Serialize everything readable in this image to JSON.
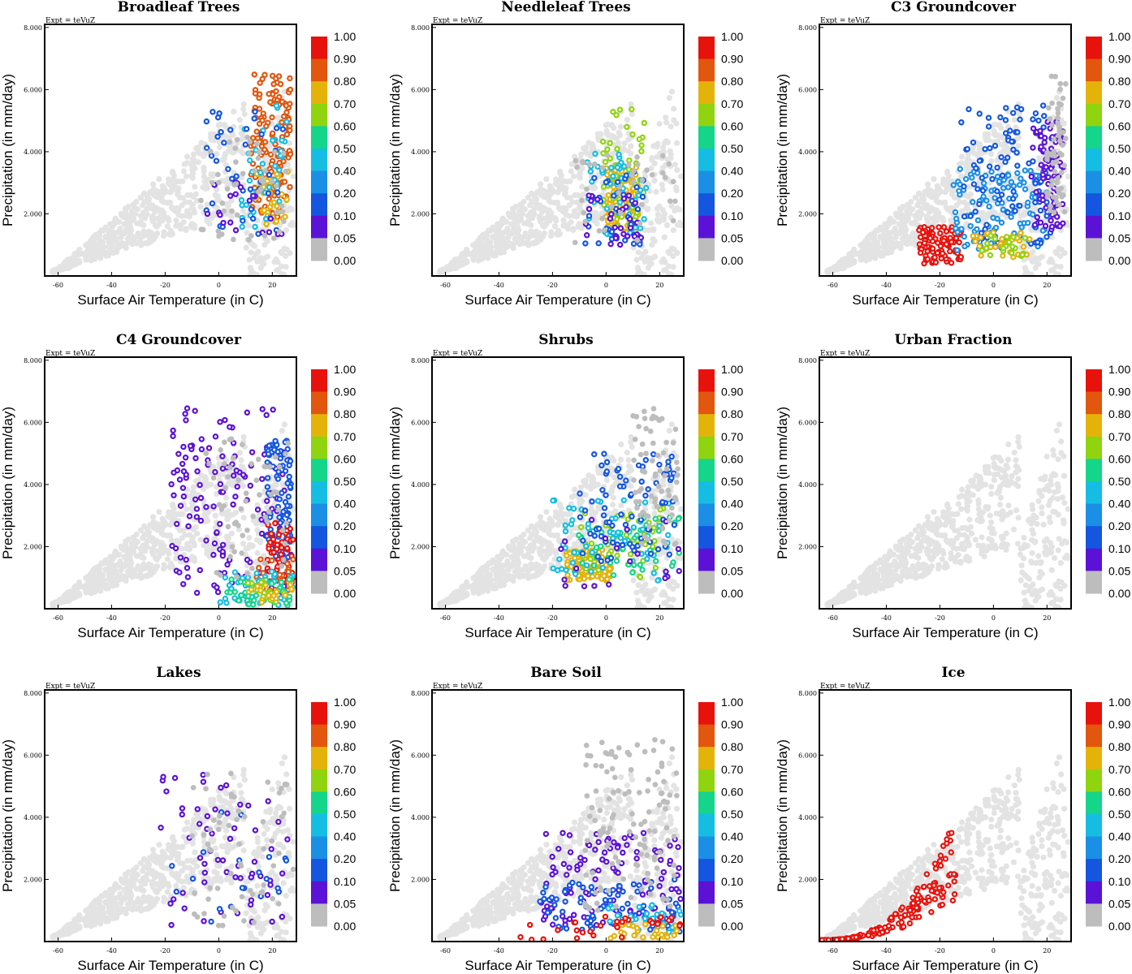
{
  "chart_data": [
    {
      "type": "scatter",
      "title": "Broadleaf Trees",
      "xlabel": "Surface Air Temperature (in C)",
      "ylabel": "Precipitation (in mm/day)",
      "xlim": [
        -65,
        29
      ],
      "ylim": [
        0,
        8.1
      ],
      "xticks": [
        "-60",
        "-40",
        "-20",
        "0",
        "20"
      ],
      "yticks": [
        "2.000",
        "4.000",
        "6.000",
        "8.000"
      ],
      "annotation": "Expt = teVuZ",
      "colorbar": {
        "levels": [
          "1.00",
          "0.90",
          "0.80",
          "0.70",
          "0.60",
          "0.50",
          "0.40",
          "0.20",
          "0.10",
          "0.05",
          "0.00"
        ],
        "colors": [
          "#e8120c",
          "#e2560e",
          "#e4b30a",
          "#8fd40f",
          "#15d58a",
          "#16bde3",
          "#1b8fe6",
          "#1456e0",
          "#5b12d6",
          "#bdbdbd"
        ]
      },
      "series": [
        {
          "cluster": true,
          "color": "#e2560e",
          "x": [
            12,
            27
          ],
          "y": [
            1.8,
            6.5
          ],
          "n": 150
        },
        {
          "cluster": true,
          "color": "#e4b30a",
          "x": [
            14,
            26
          ],
          "y": [
            1.6,
            3.4
          ],
          "n": 40
        },
        {
          "cluster": true,
          "color": "#16bde3",
          "x": [
            8,
            26
          ],
          "y": [
            1.5,
            5.5
          ],
          "n": 40
        },
        {
          "cluster": true,
          "color": "#1456e0",
          "x": [
            -5,
            26
          ],
          "y": [
            1.2,
            5.3
          ],
          "n": 40
        },
        {
          "cluster": true,
          "color": "#5b12d6",
          "x": [
            -5,
            26
          ],
          "y": [
            1.2,
            3.2
          ],
          "n": 20
        },
        {
          "cluster": true,
          "color": "#bdbdbd",
          "x": [
            -8,
            26
          ],
          "y": [
            1,
            4.5
          ],
          "n": 50
        }
      ]
    },
    {
      "type": "scatter",
      "title": "Needleleaf Trees",
      "xlabel": "Surface Air Temperature (in C)",
      "ylabel": "Precipitation (in mm/day)",
      "xlim": [
        -65,
        29
      ],
      "ylim": [
        0,
        8.1
      ],
      "xticks": [
        "-60",
        "-40",
        "-20",
        "0",
        "20"
      ],
      "yticks": [
        "2.000",
        "4.000",
        "6.000",
        "8.000"
      ],
      "annotation": "Expt = teVuZ",
      "colorbar": {
        "levels": [
          "1.00",
          "0.90",
          "0.80",
          "0.70",
          "0.60",
          "0.50",
          "0.40",
          "0.20",
          "0.10",
          "0.05",
          "0.00"
        ],
        "colors": [
          "#e8120c",
          "#e2560e",
          "#e4b30a",
          "#8fd40f",
          "#15d58a",
          "#16bde3",
          "#1b8fe6",
          "#1456e0",
          "#5b12d6",
          "#bdbdbd"
        ]
      },
      "series": [
        {
          "cluster": true,
          "color": "#e4b30a",
          "x": [
            0,
            12
          ],
          "y": [
            1.4,
            3.5
          ],
          "n": 120
        },
        {
          "cluster": true,
          "color": "#8fd40f",
          "x": [
            -2,
            15
          ],
          "y": [
            1.5,
            5.4
          ],
          "n": 50
        },
        {
          "cluster": true,
          "color": "#16bde3",
          "x": [
            -8,
            15
          ],
          "y": [
            1.2,
            4
          ],
          "n": 50
        },
        {
          "cluster": true,
          "color": "#1456e0",
          "x": [
            -8,
            14
          ],
          "y": [
            1,
            3.4
          ],
          "n": 40
        },
        {
          "cluster": true,
          "color": "#5b12d6",
          "x": [
            -10,
            14
          ],
          "y": [
            1,
            2.6
          ],
          "n": 30
        },
        {
          "cluster": true,
          "color": "#bdbdbd",
          "x": [
            -12,
            26
          ],
          "y": [
            1,
            4
          ],
          "n": 40
        }
      ]
    },
    {
      "type": "scatter",
      "title": "C3 Groundcover",
      "xlabel": "Surface Air Temperature (in C)",
      "ylabel": "Precipitation (in mm/day)",
      "xlim": [
        -65,
        29
      ],
      "ylim": [
        0,
        8.1
      ],
      "xticks": [
        "-60",
        "-40",
        "-20",
        "0",
        "20"
      ],
      "yticks": [
        "2.000",
        "4.000",
        "6.000",
        "8.000"
      ],
      "annotation": "Expt = teVuZ",
      "colorbar": {
        "levels": [
          "1.00",
          "0.90",
          "0.80",
          "0.70",
          "0.60",
          "0.50",
          "0.40",
          "0.20",
          "0.10",
          "0.05",
          "0.00"
        ],
        "colors": [
          "#e8120c",
          "#e2560e",
          "#e4b30a",
          "#8fd40f",
          "#15d58a",
          "#16bde3",
          "#1b8fe6",
          "#1456e0",
          "#5b12d6",
          "#bdbdbd"
        ]
      },
      "series": [
        {
          "cluster": true,
          "color": "#e8120c",
          "x": [
            -28,
            -12
          ],
          "y": [
            0.4,
            1.6
          ],
          "n": 100
        },
        {
          "cluster": true,
          "color": "#1b8fe6",
          "x": [
            -15,
            20
          ],
          "y": [
            0.8,
            3.5
          ],
          "n": 120
        },
        {
          "cluster": true,
          "color": "#1456e0",
          "x": [
            -12,
            22
          ],
          "y": [
            1,
            5.5
          ],
          "n": 100
        },
        {
          "cluster": true,
          "color": "#5b12d6",
          "x": [
            14,
            26
          ],
          "y": [
            1.5,
            5
          ],
          "n": 80
        },
        {
          "cluster": true,
          "color": "#e4b30a",
          "x": [
            -8,
            14
          ],
          "y": [
            0.6,
            1.4
          ],
          "n": 35
        },
        {
          "cluster": true,
          "color": "#8fd40f",
          "x": [
            -5,
            12
          ],
          "y": [
            0.6,
            1.3
          ],
          "n": 20
        },
        {
          "cluster": true,
          "color": "#bdbdbd",
          "x": [
            20,
            27
          ],
          "y": [
            2,
            6.5
          ],
          "n": 60
        }
      ]
    },
    {
      "type": "scatter",
      "title": "C4 Groundcover",
      "xlabel": "Surface Air Temperature (in C)",
      "ylabel": "Precipitation (in mm/day)",
      "xlim": [
        -65,
        29
      ],
      "ylim": [
        0,
        8.1
      ],
      "xticks": [
        "-60",
        "-40",
        "-20",
        "0",
        "20"
      ],
      "yticks": [
        "2.000",
        "4.000",
        "6.000",
        "8.000"
      ],
      "annotation": "Expt = teVuZ",
      "colorbar": {
        "levels": [
          "1.00",
          "0.90",
          "0.80",
          "0.70",
          "0.60",
          "0.50",
          "0.40",
          "0.20",
          "0.10",
          "0.05",
          "0.00"
        ],
        "colors": [
          "#e8120c",
          "#e2560e",
          "#e4b30a",
          "#8fd40f",
          "#15d58a",
          "#16bde3",
          "#1b8fe6",
          "#1456e0",
          "#5b12d6",
          "#bdbdbd"
        ]
      },
      "series": [
        {
          "cluster": true,
          "color": "#5b12d6",
          "x": [
            -18,
            27
          ],
          "y": [
            0.5,
            6.5
          ],
          "n": 150
        },
        {
          "cluster": true,
          "color": "#1456e0",
          "x": [
            18,
            27
          ],
          "y": [
            1.5,
            5.5
          ],
          "n": 100
        },
        {
          "cluster": true,
          "color": "#e8120c",
          "x": [
            18,
            28
          ],
          "y": [
            0.8,
            2.8
          ],
          "n": 50
        },
        {
          "cluster": true,
          "color": "#e2560e",
          "x": [
            14,
            28
          ],
          "y": [
            0.4,
            1.6
          ],
          "n": 30
        },
        {
          "cluster": true,
          "color": "#16bde3",
          "x": [
            0,
            28
          ],
          "y": [
            0.1,
            1.2
          ],
          "n": 50
        },
        {
          "cluster": true,
          "color": "#15d58a",
          "x": [
            2,
            28
          ],
          "y": [
            0.1,
            1
          ],
          "n": 35
        },
        {
          "cluster": true,
          "color": "#8fd40f",
          "x": [
            10,
            28
          ],
          "y": [
            0.2,
            0.9
          ],
          "n": 20
        },
        {
          "cluster": true,
          "color": "#e4b30a",
          "x": [
            12,
            28
          ],
          "y": [
            0.2,
            0.8
          ],
          "n": 15
        },
        {
          "cluster": true,
          "color": "#bdbdbd",
          "x": [
            -5,
            26
          ],
          "y": [
            1,
            5.5
          ],
          "n": 60
        }
      ]
    },
    {
      "type": "scatter",
      "title": "Shrubs",
      "xlabel": "Surface Air Temperature (in C)",
      "ylabel": "Precipitation (in mm/day)",
      "xlim": [
        -65,
        29
      ],
      "ylim": [
        0,
        8.1
      ],
      "xticks": [
        "-60",
        "-40",
        "-20",
        "0",
        "20"
      ],
      "yticks": [
        "2.000",
        "4.000",
        "6.000",
        "8.000"
      ],
      "annotation": "Expt = teVuZ",
      "colorbar": {
        "levels": [
          "1.00",
          "0.90",
          "0.80",
          "0.70",
          "0.60",
          "0.50",
          "0.40",
          "0.20",
          "0.10",
          "0.05",
          "0.00"
        ],
        "colors": [
          "#e8120c",
          "#e2560e",
          "#e4b30a",
          "#8fd40f",
          "#15d58a",
          "#16bde3",
          "#1b8fe6",
          "#1456e0",
          "#5b12d6",
          "#bdbdbd"
        ]
      },
      "series": [
        {
          "cluster": true,
          "color": "#e4b30a",
          "x": [
            -15,
            2
          ],
          "y": [
            0.9,
            1.9
          ],
          "n": 120
        },
        {
          "cluster": true,
          "color": "#8fd40f",
          "x": [
            -10,
            22
          ],
          "y": [
            1,
            3.3
          ],
          "n": 60
        },
        {
          "cluster": true,
          "color": "#15d58a",
          "x": [
            -12,
            28
          ],
          "y": [
            1,
            3
          ],
          "n": 50
        },
        {
          "cluster": true,
          "color": "#16bde3",
          "x": [
            -20,
            24
          ],
          "y": [
            0.8,
            3.5
          ],
          "n": 60
        },
        {
          "cluster": true,
          "color": "#1456e0",
          "x": [
            -10,
            26
          ],
          "y": [
            1.5,
            5
          ],
          "n": 80
        },
        {
          "cluster": true,
          "color": "#5b12d6",
          "x": [
            -20,
            28
          ],
          "y": [
            0.7,
            3
          ],
          "n": 20
        },
        {
          "cluster": true,
          "color": "#bdbdbd",
          "x": [
            10,
            27
          ],
          "y": [
            2,
            6.5
          ],
          "n": 70
        }
      ]
    },
    {
      "type": "scatter",
      "title": "Urban Fraction",
      "xlabel": "Surface Air Temperature (in C)",
      "ylabel": "Precipitation (in mm/day)",
      "xlim": [
        -65,
        29
      ],
      "ylim": [
        0,
        8.1
      ],
      "xticks": [
        "-60",
        "-40",
        "-20",
        "0",
        "20"
      ],
      "yticks": [
        "2.000",
        "4.000",
        "6.000",
        "8.000"
      ],
      "annotation": "Expt = teVuZ",
      "colorbar": {
        "levels": [
          "1.00",
          "0.90",
          "0.80",
          "0.70",
          "0.60",
          "0.50",
          "0.40",
          "0.20",
          "0.10",
          "0.05",
          "0.00"
        ],
        "colors": [
          "#e8120c",
          "#e2560e",
          "#e4b30a",
          "#8fd40f",
          "#15d58a",
          "#16bde3",
          "#1b8fe6",
          "#1456e0",
          "#5b12d6",
          "#bdbdbd"
        ]
      },
      "series": []
    },
    {
      "type": "scatter",
      "title": "Lakes",
      "xlabel": "Surface Air Temperature (in C)",
      "ylabel": "Precipitation (in mm/day)",
      "xlim": [
        -65,
        29
      ],
      "ylim": [
        0,
        8.1
      ],
      "xticks": [
        "-60",
        "-40",
        "-20",
        "0",
        "20"
      ],
      "yticks": [
        "2.000",
        "4.000",
        "6.000",
        "8.000"
      ],
      "annotation": "Expt = teVuZ",
      "colorbar": {
        "levels": [
          "1.00",
          "0.90",
          "0.80",
          "0.70",
          "0.60",
          "0.50",
          "0.40",
          "0.20",
          "0.10",
          "0.05",
          "0.00"
        ],
        "colors": [
          "#e8120c",
          "#e2560e",
          "#e4b30a",
          "#8fd40f",
          "#15d58a",
          "#16bde3",
          "#1b8fe6",
          "#1456e0",
          "#5b12d6",
          "#bdbdbd"
        ]
      },
      "series": [
        {
          "cluster": true,
          "color": "#5b12d6",
          "x": [
            -22,
            26
          ],
          "y": [
            0.5,
            5.4
          ],
          "n": 60
        },
        {
          "cluster": true,
          "color": "#1456e0",
          "x": [
            -18,
            26
          ],
          "y": [
            0.6,
            4.2
          ],
          "n": 20
        },
        {
          "cluster": true,
          "color": "#bdbdbd",
          "x": [
            -10,
            28
          ],
          "y": [
            0.5,
            5.5
          ],
          "n": 60
        }
      ]
    },
    {
      "type": "scatter",
      "title": "Bare Soil",
      "xlabel": "Surface Air Temperature (in C)",
      "ylabel": "Precipitation (in mm/day)",
      "xlim": [
        -65,
        29
      ],
      "ylim": [
        0,
        8.1
      ],
      "xticks": [
        "-60",
        "-40",
        "-20",
        "0",
        "20"
      ],
      "yticks": [
        "2.000",
        "4.000",
        "6.000",
        "8.000"
      ],
      "annotation": "Expt = teVuZ",
      "colorbar": {
        "levels": [
          "1.00",
          "0.90",
          "0.80",
          "0.70",
          "0.60",
          "0.50",
          "0.40",
          "0.20",
          "0.10",
          "0.05",
          "0.00"
        ],
        "colors": [
          "#e8120c",
          "#e2560e",
          "#e4b30a",
          "#8fd40f",
          "#15d58a",
          "#16bde3",
          "#1b8fe6",
          "#1456e0",
          "#5b12d6",
          "#bdbdbd"
        ]
      },
      "series": [
        {
          "cluster": true,
          "color": "#5b12d6",
          "x": [
            -25,
            28
          ],
          "y": [
            0.5,
            3.5
          ],
          "n": 120
        },
        {
          "cluster": true,
          "color": "#1456e0",
          "x": [
            -25,
            28
          ],
          "y": [
            0.3,
            2
          ],
          "n": 80
        },
        {
          "cluster": true,
          "color": "#16bde3",
          "x": [
            0,
            28
          ],
          "y": [
            0.3,
            1.2
          ],
          "n": 30
        },
        {
          "cluster": true,
          "color": "#e4b30a",
          "x": [
            0,
            28
          ],
          "y": [
            0.1,
            0.6
          ],
          "n": 30
        },
        {
          "cluster": true,
          "color": "#e8120c",
          "x": [
            -32,
            28
          ],
          "y": [
            0.05,
            0.8
          ],
          "n": 30
        },
        {
          "cluster": true,
          "color": "#bdbdbd",
          "x": [
            -8,
            27
          ],
          "y": [
            1,
            6.5
          ],
          "n": 120
        }
      ]
    },
    {
      "type": "scatter",
      "title": "Ice",
      "xlabel": "Surface Air Temperature (in C)",
      "ylabel": "Precipitation (in mm/day)",
      "xlim": [
        -65,
        29
      ],
      "ylim": [
        0,
        8.1
      ],
      "xticks": [
        "-60",
        "-40",
        "-20",
        "0",
        "20"
      ],
      "yticks": [
        "2.000",
        "4.000",
        "6.000",
        "8.000"
      ],
      "annotation": "Expt = teVuZ",
      "colorbar": {
        "levels": [
          "1.00",
          "0.90",
          "0.80",
          "0.70",
          "0.60",
          "0.50",
          "0.40",
          "0.20",
          "0.10",
          "0.05",
          "0.00"
        ],
        "colors": [
          "#e8120c",
          "#e2560e",
          "#e4b30a",
          "#8fd40f",
          "#15d58a",
          "#16bde3",
          "#1b8fe6",
          "#1456e0",
          "#5b12d6",
          "#bdbdbd"
        ]
      },
      "series": [
        {
          "cluster": true,
          "color": "#e8120c",
          "x": [
            -65,
            -14
          ],
          "y": [
            0,
            3.3
          ],
          "n": 160,
          "curve": true
        }
      ]
    }
  ]
}
